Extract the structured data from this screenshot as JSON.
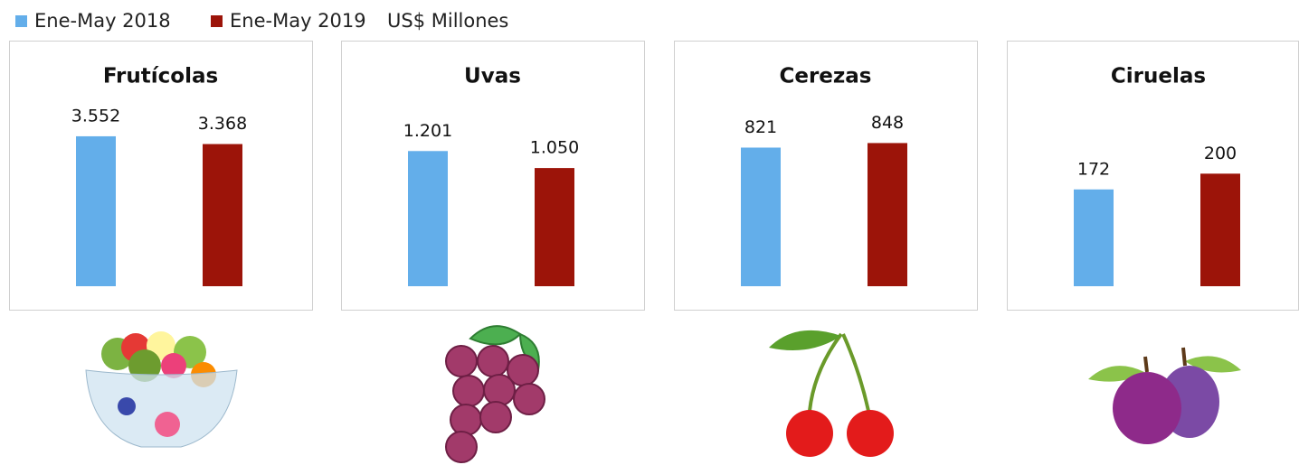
{
  "legend": {
    "series": [
      {
        "name": "Ene-May 2018",
        "color": "#63aeea"
      },
      {
        "name": "Ene-May 2019",
        "color": "#9c1409"
      }
    ],
    "unit": "US$ Millones"
  },
  "chart_data": [
    {
      "type": "bar",
      "title": "Frutícolas",
      "values": [
        3552,
        3368
      ],
      "value_labels": [
        "3.552",
        "3.368"
      ],
      "ylim": [
        0,
        4000
      ]
    },
    {
      "type": "bar",
      "title": "Uvas",
      "values": [
        1201,
        1050
      ],
      "value_labels": [
        "1.201",
        "1.050"
      ],
      "ylim": [
        0,
        1500
      ]
    },
    {
      "type": "bar",
      "title": "Cerezas",
      "values": [
        821,
        848
      ],
      "ylim": [
        0,
        1000
      ]
    },
    {
      "type": "bar",
      "title": "Ciruelas",
      "values": [
        172,
        200
      ],
      "ylim": [
        0,
        300
      ]
    }
  ]
}
